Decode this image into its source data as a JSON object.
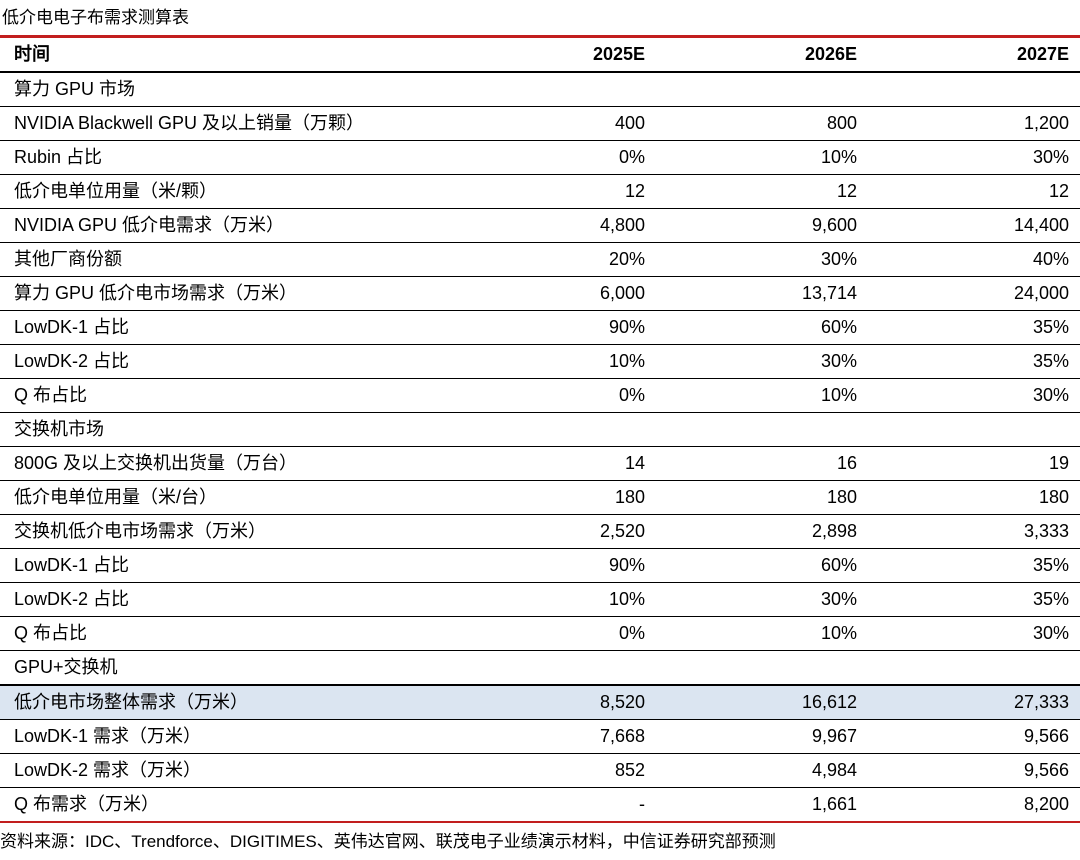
{
  "title": "低介电电子布需求测算表",
  "source": "资料来源：IDC、Trendforce、DIGITIMES、英伟达官网、联茂电子业绩演示材料，中信证券研究部预测",
  "colors": {
    "accent_red": "#c21e1e",
    "highlight_blue": "#dbe5f1",
    "border_black": "#000000"
  },
  "table": {
    "header": [
      "时间",
      "2025E",
      "2026E",
      "2027E"
    ],
    "rows": [
      {
        "type": "section",
        "label": "算力 GPU 市场",
        "values": [
          "",
          "",
          ""
        ]
      },
      {
        "type": "data",
        "label": "NVIDIA Blackwell GPU 及以上销量（万颗）",
        "values": [
          "400",
          "800",
          "1,200"
        ]
      },
      {
        "type": "data",
        "label": "Rubin 占比",
        "values": [
          "0%",
          "10%",
          "30%"
        ]
      },
      {
        "type": "data",
        "label": "低介电单位用量（米/颗）",
        "values": [
          "12",
          "12",
          "12"
        ]
      },
      {
        "type": "data",
        "label": "NVIDIA GPU 低介电需求（万米）",
        "values": [
          "4,800",
          "9,600",
          "14,400"
        ]
      },
      {
        "type": "data",
        "label": "其他厂商份额",
        "values": [
          "20%",
          "30%",
          "40%"
        ]
      },
      {
        "type": "data",
        "label": "算力 GPU 低介电市场需求（万米）",
        "values": [
          "6,000",
          "13,714",
          "24,000"
        ]
      },
      {
        "type": "data",
        "label": "LowDK-1 占比",
        "values": [
          "90%",
          "60%",
          "35%"
        ]
      },
      {
        "type": "data",
        "label": "LowDK-2 占比",
        "values": [
          "10%",
          "30%",
          "35%"
        ]
      },
      {
        "type": "data",
        "label": "Q 布占比",
        "values": [
          "0%",
          "10%",
          "30%"
        ]
      },
      {
        "type": "section",
        "label": "交换机市场",
        "values": [
          "",
          "",
          ""
        ]
      },
      {
        "type": "data",
        "label": "800G 及以上交换机出货量（万台）",
        "values": [
          "14",
          "16",
          "19"
        ]
      },
      {
        "type": "data",
        "label": "低介电单位用量（米/台）",
        "values": [
          "180",
          "180",
          "180"
        ]
      },
      {
        "type": "data",
        "label": "交换机低介电市场需求（万米）",
        "values": [
          "2,520",
          "2,898",
          "3,333"
        ]
      },
      {
        "type": "data",
        "label": "LowDK-1 占比",
        "values": [
          "90%",
          "60%",
          "35%"
        ]
      },
      {
        "type": "data",
        "label": "LowDK-2 占比",
        "values": [
          "10%",
          "30%",
          "35%"
        ]
      },
      {
        "type": "data",
        "label": "Q 布占比",
        "values": [
          "0%",
          "10%",
          "30%"
        ]
      },
      {
        "type": "section",
        "label": "GPU+交换机",
        "values": [
          "",
          "",
          ""
        ]
      },
      {
        "type": "data",
        "highlight": true,
        "label": "低介电市场整体需求（万米）",
        "values": [
          "8,520",
          "16,612",
          "27,333"
        ]
      },
      {
        "type": "data",
        "label": "LowDK-1 需求（万米）",
        "values": [
          "7,668",
          "9,967",
          "9,566"
        ]
      },
      {
        "type": "data",
        "label": "LowDK-2 需求（万米）",
        "values": [
          "852",
          "4,984",
          "9,566"
        ]
      },
      {
        "type": "data",
        "label": "Q 布需求（万米）",
        "values": [
          "-",
          "1,661",
          "8,200"
        ]
      }
    ]
  }
}
